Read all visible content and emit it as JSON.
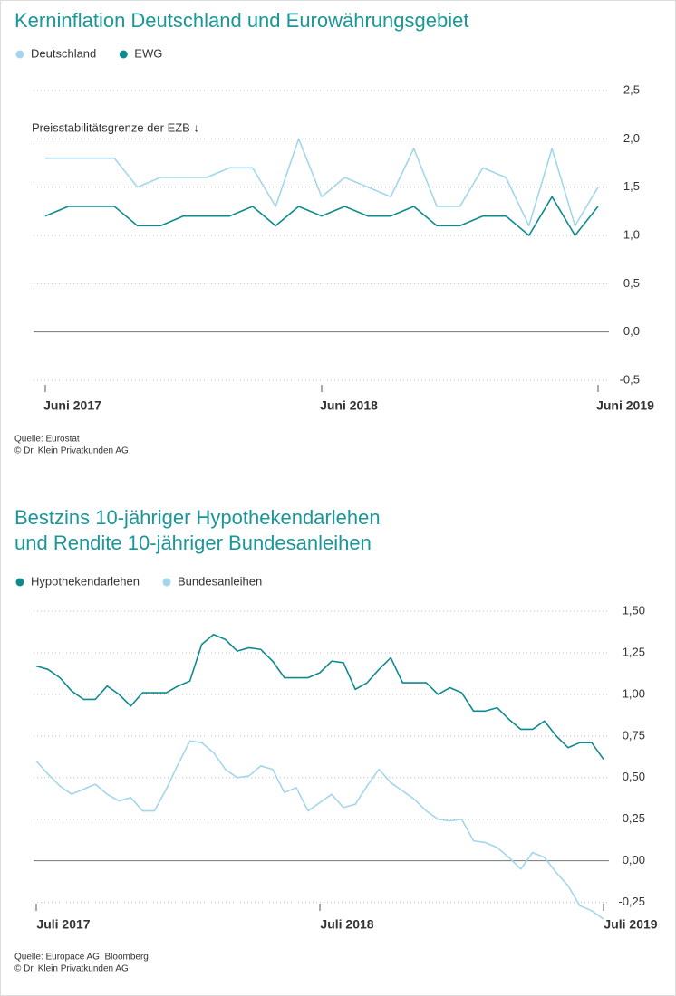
{
  "chart_data": [
    {
      "type": "line",
      "title": [
        "Kerninflation Deutschland und Eurowährungsgebiet"
      ],
      "annotation": "Preisstabilitätsgrenze der EZB ↓",
      "categories": [
        "Juni 2017",
        null,
        null,
        null,
        null,
        null,
        null,
        null,
        null,
        null,
        null,
        null,
        "Juni 2018",
        null,
        null,
        null,
        null,
        null,
        null,
        null,
        null,
        null,
        null,
        null,
        "Juni 2019"
      ],
      "series": [
        {
          "name": "Deutschland",
          "color": "#a3d6ea",
          "values": [
            1.8,
            1.8,
            1.8,
            1.8,
            1.5,
            1.6,
            1.6,
            1.6,
            1.7,
            1.7,
            1.3,
            2.0,
            1.4,
            1.6,
            1.5,
            1.4,
            1.9,
            1.3,
            1.3,
            1.7,
            1.6,
            1.1,
            1.9,
            1.1,
            1.5
          ]
        },
        {
          "name": "EWG",
          "color": "#0f8a8e",
          "values": [
            1.2,
            1.3,
            1.3,
            1.3,
            1.1,
            1.1,
            1.2,
            1.2,
            1.2,
            1.3,
            1.1,
            1.3,
            1.2,
            1.3,
            1.2,
            1.2,
            1.3,
            1.1,
            1.1,
            1.2,
            1.2,
            1.0,
            1.4,
            1.0,
            1.3
          ]
        }
      ],
      "ylim": [
        -0.5,
        2.5
      ],
      "yticks": [
        {
          "value": 2.5,
          "label": "2,5"
        },
        {
          "value": 2.0,
          "label": "2,0"
        },
        {
          "value": 1.5,
          "label": "1,5"
        },
        {
          "value": 1.0,
          "label": "1,0"
        },
        {
          "value": 0.5,
          "label": "0,5"
        },
        {
          "value": 0,
          "label": "0,0"
        },
        {
          "value": -0.5,
          "label": "-0,5"
        }
      ],
      "grid": true,
      "legend": "top",
      "source": [
        "Quelle: Eurostat",
        "© Dr. Klein Privatkunden AG"
      ]
    },
    {
      "type": "line",
      "title": [
        "Bestzins 10-jähriger Hypothekendarlehen",
        "und Rendite 10-jähriger Bundesanleihen"
      ],
      "categories": [
        "Juli 2017",
        null,
        null,
        null,
        null,
        null,
        null,
        null,
        null,
        null,
        null,
        null,
        null,
        null,
        null,
        null,
        null,
        null,
        null,
        null,
        null,
        null,
        null,
        null,
        "Juli 2018",
        null,
        null,
        null,
        null,
        null,
        null,
        null,
        null,
        null,
        null,
        null,
        null,
        null,
        null,
        null,
        null,
        null,
        null,
        null,
        null,
        null,
        null,
        null,
        "Juli 2019"
      ],
      "series": [
        {
          "name": "Hypothekendarlehen",
          "color": "#0f8a8e",
          "values": [
            1.17,
            1.15,
            1.1,
            1.02,
            0.97,
            0.97,
            1.05,
            1.0,
            0.93,
            1.01,
            1.01,
            1.01,
            1.05,
            1.08,
            1.3,
            1.36,
            1.33,
            1.26,
            1.28,
            1.27,
            1.2,
            1.1,
            1.1,
            1.1,
            1.13,
            1.2,
            1.19,
            1.03,
            1.07,
            1.15,
            1.22,
            1.07,
            1.07,
            1.07,
            1.0,
            1.04,
            1.01,
            0.9,
            0.9,
            0.92,
            0.85,
            0.79,
            0.79,
            0.84,
            0.75,
            0.68,
            0.71,
            0.71,
            0.61
          ]
        },
        {
          "name": "Bundesanleihen",
          "color": "#a3d6ea",
          "values": [
            0.6,
            0.52,
            0.45,
            0.4,
            0.43,
            0.46,
            0.4,
            0.36,
            0.38,
            0.3,
            0.3,
            0.43,
            0.58,
            0.72,
            0.71,
            0.65,
            0.55,
            0.5,
            0.51,
            0.57,
            0.55,
            0.41,
            0.44,
            0.3,
            0.35,
            0.4,
            0.32,
            0.34,
            0.45,
            0.55,
            0.47,
            0.42,
            0.37,
            0.3,
            0.25,
            0.24,
            0.25,
            0.12,
            0.11,
            0.08,
            0.02,
            -0.05,
            0.05,
            0.02,
            -0.07,
            -0.15,
            -0.27,
            -0.3,
            -0.35
          ]
        }
      ],
      "ylim": [
        -0.35,
        1.5
      ],
      "yticks": [
        {
          "value": 1.5,
          "label": "1,50"
        },
        {
          "value": 1.25,
          "label": "1,25"
        },
        {
          "value": 1.0,
          "label": "1,00"
        },
        {
          "value": 0.75,
          "label": "0,75"
        },
        {
          "value": 0.5,
          "label": "0,50"
        },
        {
          "value": 0.25,
          "label": "0,25"
        },
        {
          "value": 0,
          "label": "0,00"
        },
        {
          "value": -0.25,
          "label": "-0,25"
        }
      ],
      "grid": true,
      "legend": "top",
      "source": [
        "Quelle: Europace AG, Bloomberg",
        "© Dr. Klein Privatkunden AG"
      ]
    }
  ]
}
